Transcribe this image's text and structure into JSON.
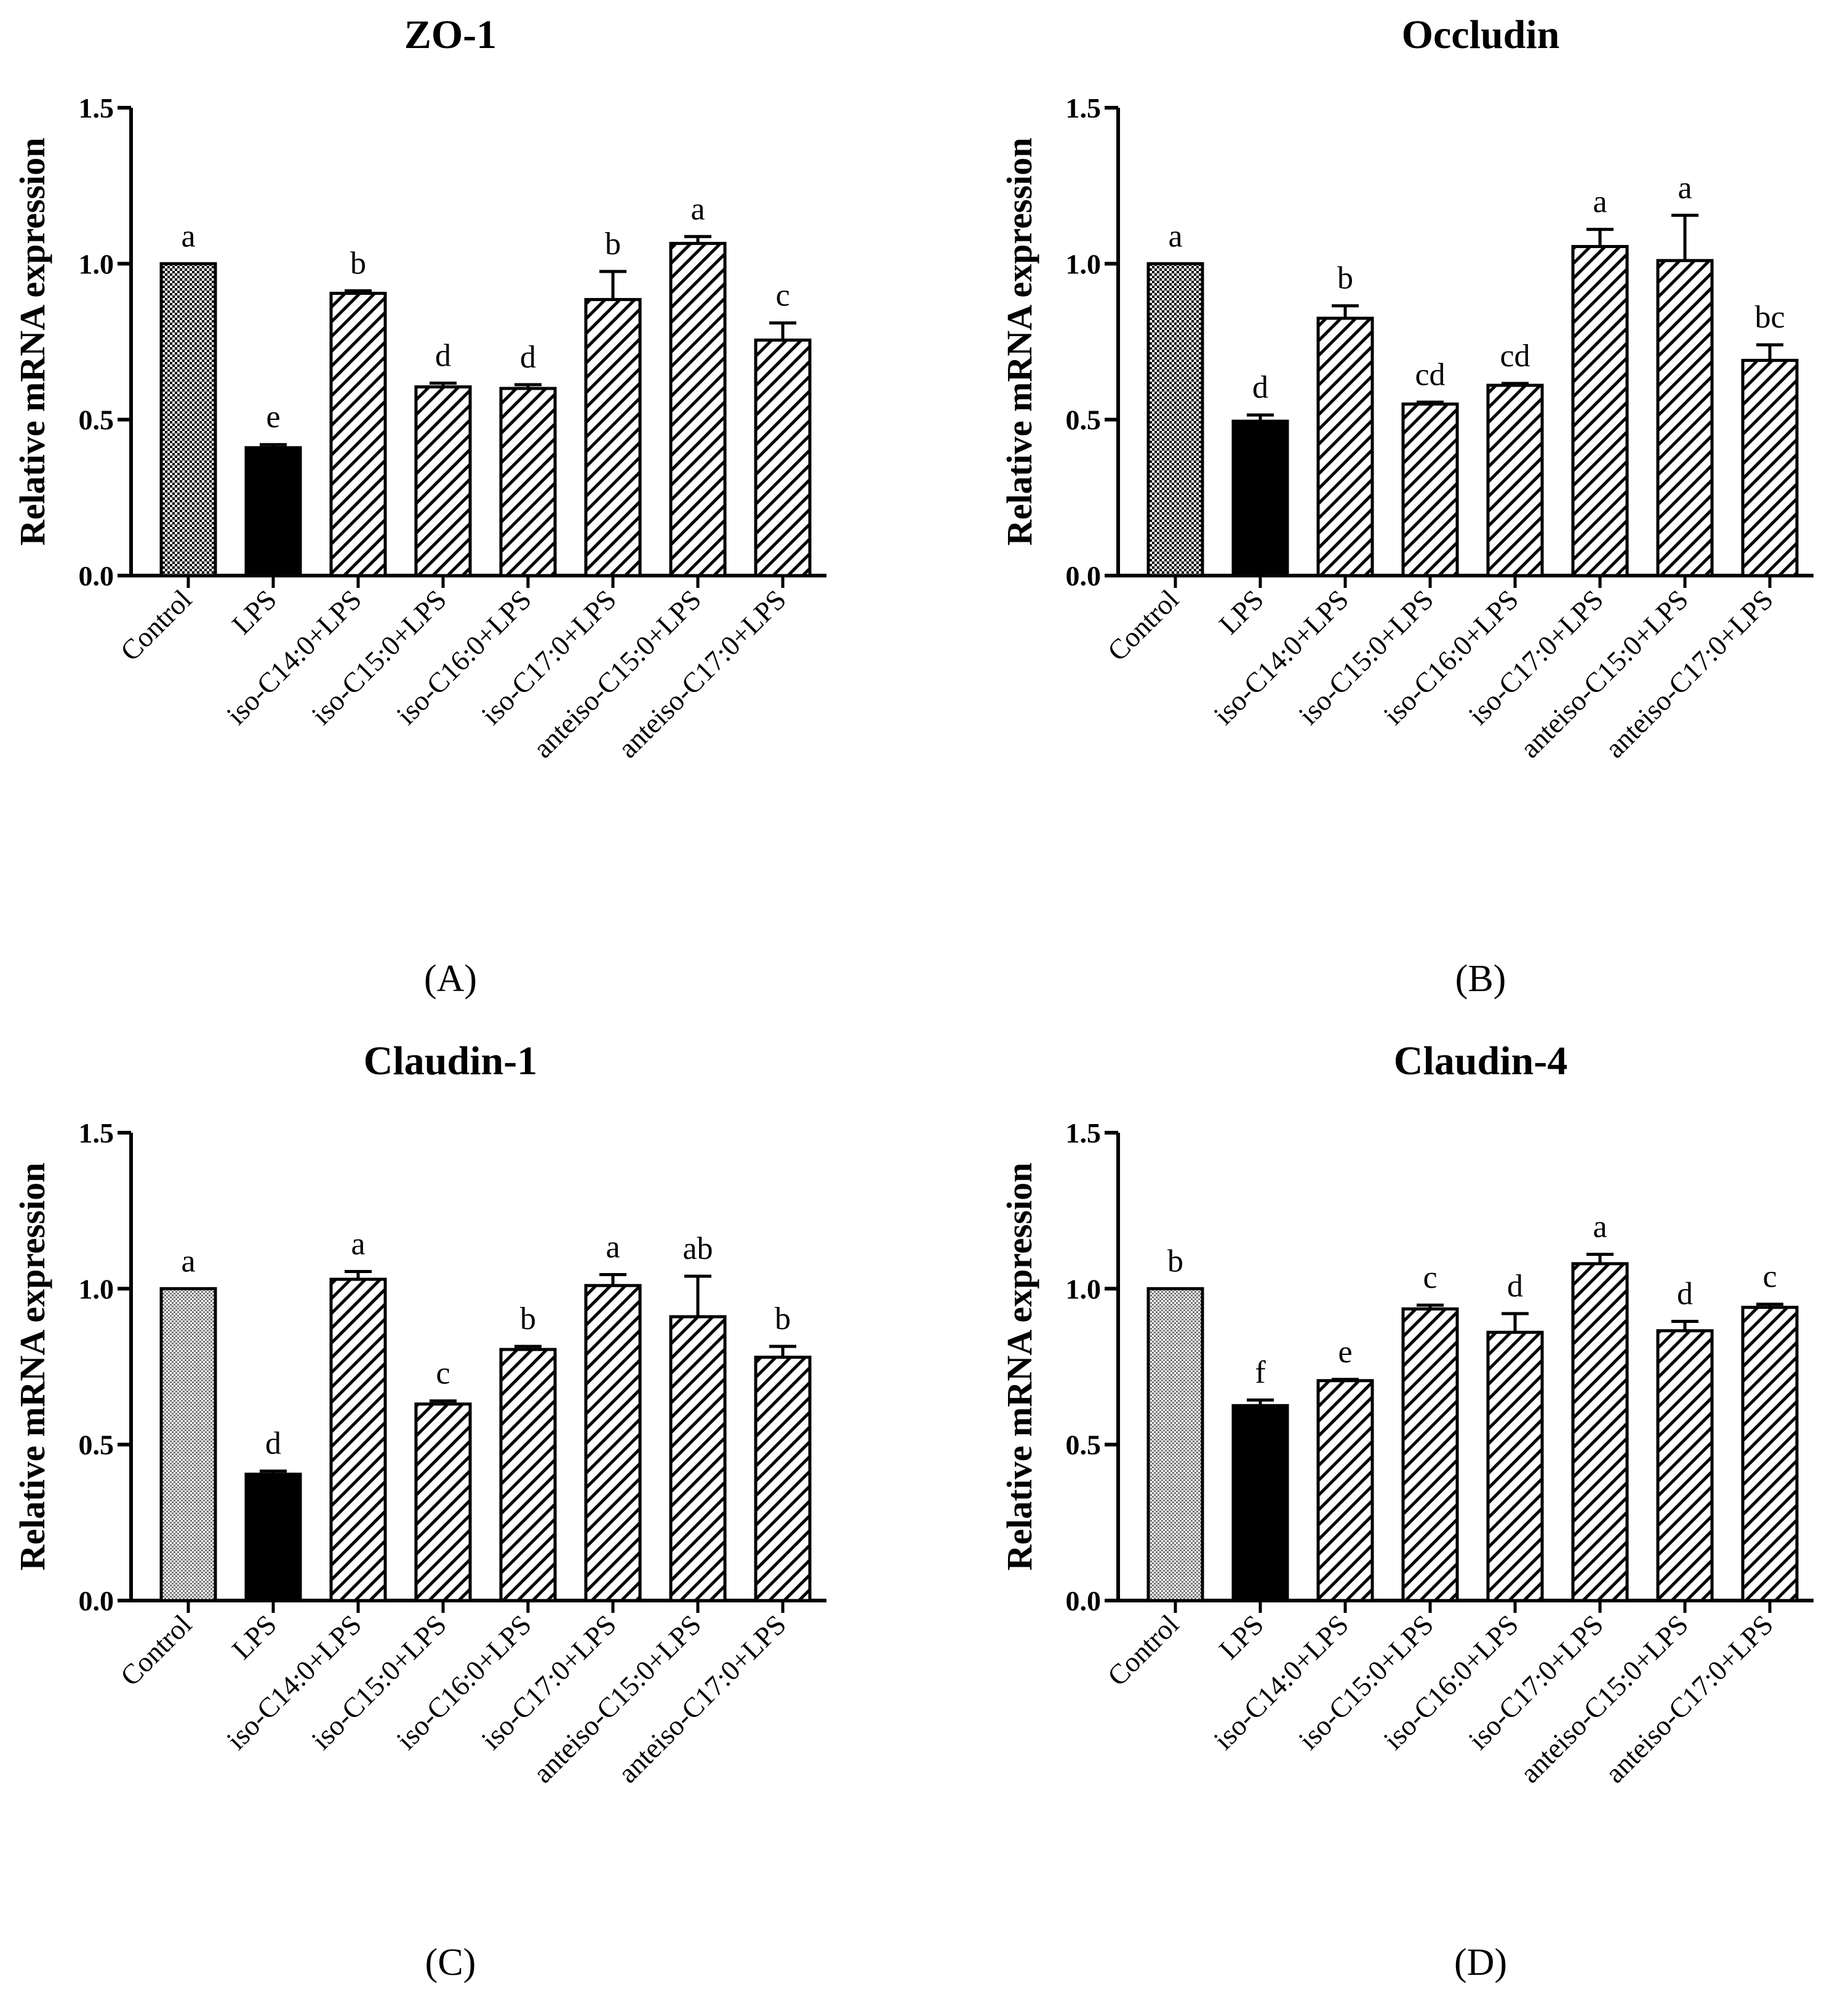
{
  "chart_data": [
    {
      "type": "bar",
      "title": "ZO-1",
      "panel_label": "(A)",
      "xlabel": "",
      "ylabel": "Relative mRNA expression",
      "ylim": [
        0,
        1.5
      ],
      "yticks": [
        "0.0",
        "0.5",
        "1.0",
        "1.5"
      ],
      "categories": [
        "Control",
        "LPS",
        "iso-C14:0+LPS",
        "iso-C15:0+LPS",
        "iso-C16:0+LPS",
        "iso-C17:0+LPS",
        "anteiso-C15:0+LPS",
        "anteiso-C17:0+LPS"
      ],
      "values": [
        1.0,
        0.41,
        0.905,
        0.605,
        0.6,
        0.885,
        1.065,
        0.755
      ],
      "errors": [
        0,
        0.01,
        0.008,
        0.012,
        0.012,
        0.09,
        0.022,
        0.055
      ],
      "letters": [
        "a",
        "e",
        "b",
        "d",
        "d",
        "b",
        "a",
        "c"
      ],
      "fills": [
        "checker",
        "solid",
        "hatch",
        "hatch",
        "hatch",
        "hatch",
        "hatch",
        "hatch"
      ]
    },
    {
      "type": "bar",
      "title": "Occludin",
      "panel_label": "(B)",
      "xlabel": "",
      "ylabel": "Relative mRNA expression",
      "ylim": [
        0,
        1.5
      ],
      "yticks": [
        "0.0",
        "0.5",
        "1.0",
        "1.5"
      ],
      "categories": [
        "Control",
        "LPS",
        "iso-C14:0+LPS",
        "iso-C15:0+LPS",
        "iso-C16:0+LPS",
        "iso-C17:0+LPS",
        "anteiso-C15:0+LPS",
        "anteiso-C17:0+LPS"
      ],
      "values": [
        1.0,
        0.495,
        0.825,
        0.55,
        0.61,
        1.055,
        1.01,
        0.69
      ],
      "errors": [
        0,
        0.02,
        0.04,
        0.006,
        0.006,
        0.055,
        0.145,
        0.05
      ],
      "letters": [
        "a",
        "d",
        "b",
        "cd",
        "cd",
        "a",
        "a",
        "bc"
      ],
      "fills": [
        "checker",
        "solid",
        "hatch",
        "hatch",
        "hatch",
        "hatch",
        "hatch",
        "hatch"
      ]
    },
    {
      "type": "bar",
      "title": "Claudin-1",
      "panel_label": "(C)",
      "xlabel": "",
      "ylabel": "Relative mRNA expression",
      "ylim": [
        0,
        1.5
      ],
      "yticks": [
        "0.0",
        "0.5",
        "1.0",
        "1.5"
      ],
      "categories": [
        "Control",
        "LPS",
        "iso-C14:0+LPS",
        "iso-C15:0+LPS",
        "iso-C16:0+LPS",
        "iso-C17:0+LPS",
        "anteiso-C15:0+LPS",
        "anteiso-C17:0+LPS"
      ],
      "values": [
        1.0,
        0.405,
        1.03,
        0.63,
        0.805,
        1.01,
        0.91,
        0.78
      ],
      "errors": [
        0,
        0.01,
        0.025,
        0.01,
        0.01,
        0.035,
        0.13,
        0.035
      ],
      "letters": [
        "a",
        "d",
        "a",
        "c",
        "b",
        "a",
        "ab",
        "b"
      ],
      "fills": [
        "dots",
        "solid",
        "hatch",
        "hatch",
        "hatch",
        "hatch",
        "hatch",
        "hatch"
      ]
    },
    {
      "type": "bar",
      "title": "Claudin-4",
      "panel_label": "(D)",
      "xlabel": "",
      "ylabel": "Relative mRNA expression",
      "ylim": [
        0,
        1.5
      ],
      "yticks": [
        "0.0",
        "0.5",
        "1.0",
        "1.5"
      ],
      "categories": [
        "Control",
        "LPS",
        "iso-C14:0+LPS",
        "iso-C15:0+LPS",
        "iso-C16:0+LPS",
        "iso-C17:0+LPS",
        "anteiso-C15:0+LPS",
        "anteiso-C17:0+LPS"
      ],
      "values": [
        1.0,
        0.625,
        0.705,
        0.935,
        0.86,
        1.08,
        0.865,
        0.94
      ],
      "errors": [
        0,
        0.018,
        0.004,
        0.012,
        0.06,
        0.03,
        0.03,
        0.01
      ],
      "letters": [
        "b",
        "f",
        "e",
        "c",
        "d",
        "a",
        "d",
        "c"
      ],
      "fills": [
        "dots",
        "solid",
        "hatch",
        "hatch",
        "hatch",
        "hatch",
        "hatch",
        "hatch"
      ]
    }
  ]
}
